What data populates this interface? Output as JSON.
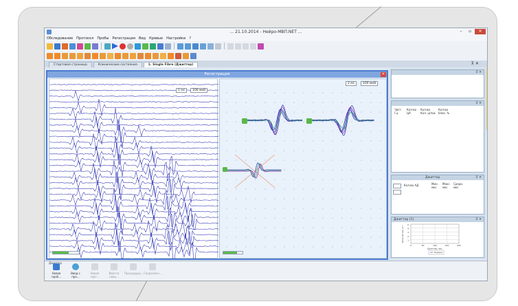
{
  "window": {
    "title": "... 21.10.2014 - Нейро-МВП.NET ..."
  },
  "menu": [
    "Обследование",
    "Протокол",
    "Пробы",
    "Регистрация",
    "Вид",
    "Кривые",
    "Настройки",
    "?"
  ],
  "tabs": [
    {
      "label": "Стартовая страница",
      "active": false
    },
    {
      "label": "Клинические состояния",
      "active": false
    },
    {
      "label": "1. Single Fibre (Джиттер)",
      "active": true
    }
  ],
  "registration": {
    "title": "Регистрация",
    "left_controls": {
      "sweep": "1 мс",
      "sens": "100 мкВ"
    },
    "right_controls": {
      "sweep": "2 мс",
      "sens": "100 мкВ"
    }
  },
  "right_panels": {
    "table_headers": [
      "Чист. Гц",
      "Кол-во ЦА",
      "Кол-во Кол. ц/пок",
      "Кол-во блок. %"
    ],
    "jitter_title": "Джиттер",
    "jitter_headers": [
      "Мин. мкс",
      "Макс. мкс",
      "Средн. мкс"
    ],
    "jitter_input_label": "Кол-во АД",
    "jitter_chart_title": "Джиттер (1)",
    "jitter_legend": "Нормал",
    "jitter_xlabel": "Джиттер, мкс",
    "jitter_ylabel": "Количество, шт.",
    "jitter_x_ticks": [
      "0",
      "50",
      "100",
      "150",
      "200"
    ],
    "jitter_y_ticks": [
      "1",
      "2",
      "3",
      "4",
      "5"
    ]
  },
  "bottom": {
    "title": "Джиттер",
    "buttons": [
      "Новая проб...",
      "Ввод с про...",
      "Новая черт...",
      "Ввести новь...",
      "Процедуры...",
      "Сохранённ..."
    ]
  },
  "colors": {
    "accent": "#4b7bd0",
    "close": "#d64a3a",
    "trace": "#3a3fb6",
    "trace_purple": "#9a2fa8",
    "trace_green": "#2aa874",
    "marker_green": "#58b947",
    "cross": "#e8a27c"
  }
}
